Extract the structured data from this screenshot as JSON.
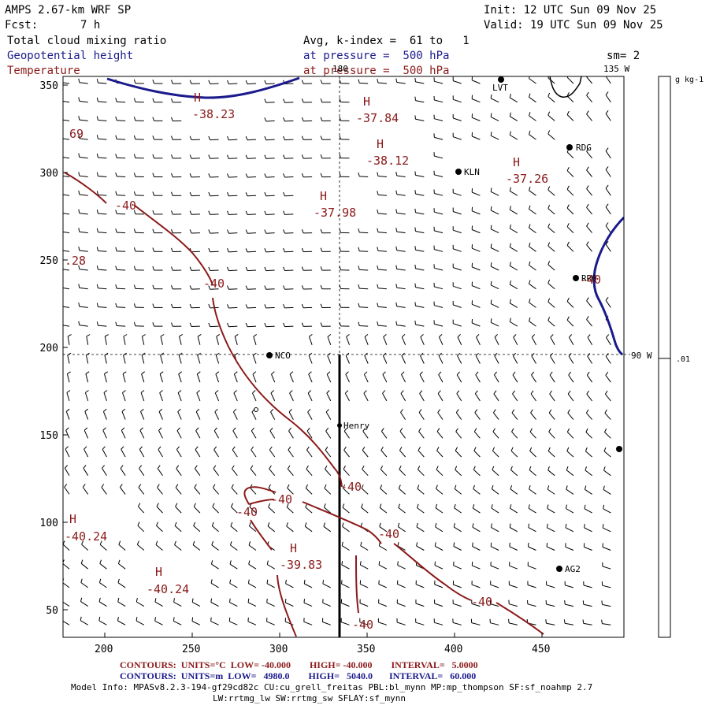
{
  "header": {
    "model": "AMPS 2.67-km WRF SP",
    "init": "Init: 12 UTC Sun 09 Nov 25",
    "fcst_label": "Fcst:",
    "fcst_value": "7 h",
    "valid": "Valid: 19 UTC Sun 09 Nov 25",
    "field1": "Total cloud mixing ratio",
    "field1_desc": "Avg, k-index =  61 to   1",
    "field2": "Geopotential height",
    "field2_desc": "at pressure =  500 hPa",
    "sm": "sm= 2",
    "field3": "Temperature",
    "field3_desc": "at pressure =  500 hPa"
  },
  "map": {
    "lon_labels": [
      {
        "text": "180"
      },
      {
        "text": "135 W"
      },
      {
        "text": "90 W"
      }
    ],
    "x_ticks": [
      "200",
      "250",
      "300",
      "350",
      "400",
      "450"
    ],
    "y_ticks": [
      "50",
      "100",
      "150",
      "200",
      "250",
      "300",
      "350"
    ],
    "stations": [
      "LVT",
      "RDG",
      "KLN",
      "RR0",
      "NCO",
      "Henry",
      "AG2"
    ],
    "temperature_labels": [
      "-40",
      "-40",
      "-40",
      "-40",
      "-40",
      "-40",
      "-40",
      "-40",
      "-40"
    ],
    "high_centers": [
      {
        "letter": "H",
        "value": "-38.23"
      },
      {
        "letter": "H",
        "value": "-37.84"
      },
      {
        "letter": "H",
        "value": "-38.12"
      },
      {
        "letter": "H",
        "value": "-37.26"
      },
      {
        "letter": "H",
        "value": "-37.98"
      },
      {
        "letter": "H",
        "value": "-40.24"
      },
      {
        "letter": "H",
        "value": "-40.24"
      },
      {
        "letter": "H",
        "value": "-39.83"
      }
    ],
    "edge_labels": [
      "69",
      ".28"
    ],
    "colors": {
      "temperature": "#8b1a1a",
      "height": "#1a1a8c",
      "frame": "#000000"
    }
  },
  "colorbar": {
    "units": "g kg-1",
    "value": ".01"
  },
  "footer": {
    "red_line": "CONTOURS:  UNITS=°C  LOW= -40.000        HIGH= -40.000        INTERVAL=   5.0000",
    "blue_line": "CONTOURS:  UNITS=m  LOW=   4980.0        HIGH=   5040.0       INTERVAL=   60.000",
    "model_info": "Model Info: MPASv8.2.3-194-gf29cd82c CU:cu_grell_freitas PBL:bl_mynn MP:mp_thompson SF:sf_noahmp 2.7",
    "model_info2": "LW:rrtmg_lw SW:rrtmg_sw SFLAY:sf_mynn"
  }
}
